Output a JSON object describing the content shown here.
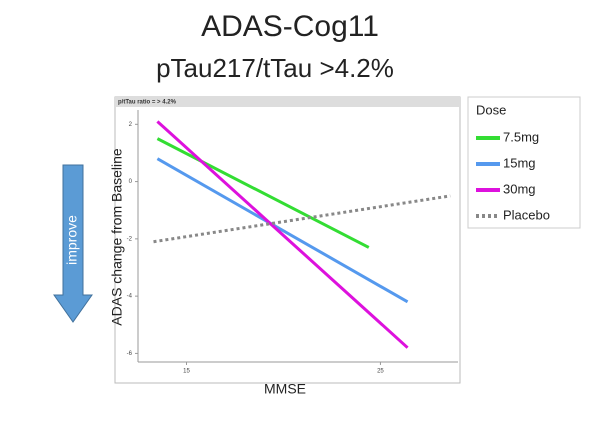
{
  "chart_data": {
    "type": "line",
    "title": "ADAS-Cog11",
    "subtitle": "pTau217/tTau >4.2%",
    "panel_label": "p/tTau ratio = > 4.2%",
    "y_label": "ADAS change from Baseline",
    "x_label": "MMSE",
    "annotation": "improve",
    "legend_title": "Dose",
    "x": [
      13.5,
      24.4
    ],
    "series": [
      {
        "name": "7.5mg",
        "color": "#33dd33",
        "x": [
          13.5,
          24.4
        ],
        "values": [
          1.5,
          -2.3
        ]
      },
      {
        "name": "15mg",
        "color": "#5599ee",
        "x": [
          13.5,
          26.4
        ],
        "values": [
          0.8,
          -4.2
        ]
      },
      {
        "name": "30mg",
        "color": "#dd11dd",
        "x": [
          13.5,
          26.4
        ],
        "values": [
          2.1,
          -5.8
        ]
      },
      {
        "name": "Placebo",
        "color": "#888888",
        "dashed": true,
        "x": [
          13.3,
          28.6
        ],
        "values": [
          -2.1,
          -0.5
        ]
      }
    ],
    "xlim": [
      12.5,
      29
    ],
    "xticks": [
      15,
      25
    ],
    "ylim": [
      -6.3,
      2.5
    ],
    "yticks": [
      2,
      0,
      -2,
      -4,
      -6
    ],
    "grid": false
  }
}
